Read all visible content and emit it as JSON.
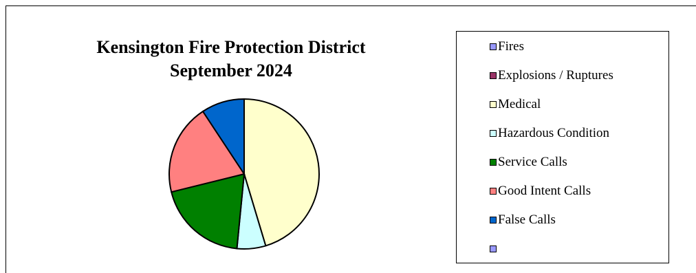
{
  "chart_data": {
    "type": "pie",
    "title": "Kensington Fire Protection District",
    "subtitle": "September 2024",
    "slices": [
      {
        "label": "Fires",
        "value": 0,
        "color": "#9999ff"
      },
      {
        "label": "Explosions / Ruptures",
        "value": 0,
        "color": "#993366"
      },
      {
        "label": "Medical",
        "value": 44,
        "color": "#ffffcc"
      },
      {
        "label": "Hazardous Condition",
        "value": 6,
        "color": "#ccffff"
      },
      {
        "label": "Service Calls",
        "value": 19,
        "color": "#008000"
      },
      {
        "label": "Good Intent Calls",
        "value": 19,
        "color": "#ff8080"
      },
      {
        "label": "False Calls",
        "value": 9,
        "color": "#0066cc"
      },
      {
        "label": "",
        "value": 0,
        "color": "#9999ff"
      }
    ],
    "legend_position": "right"
  }
}
